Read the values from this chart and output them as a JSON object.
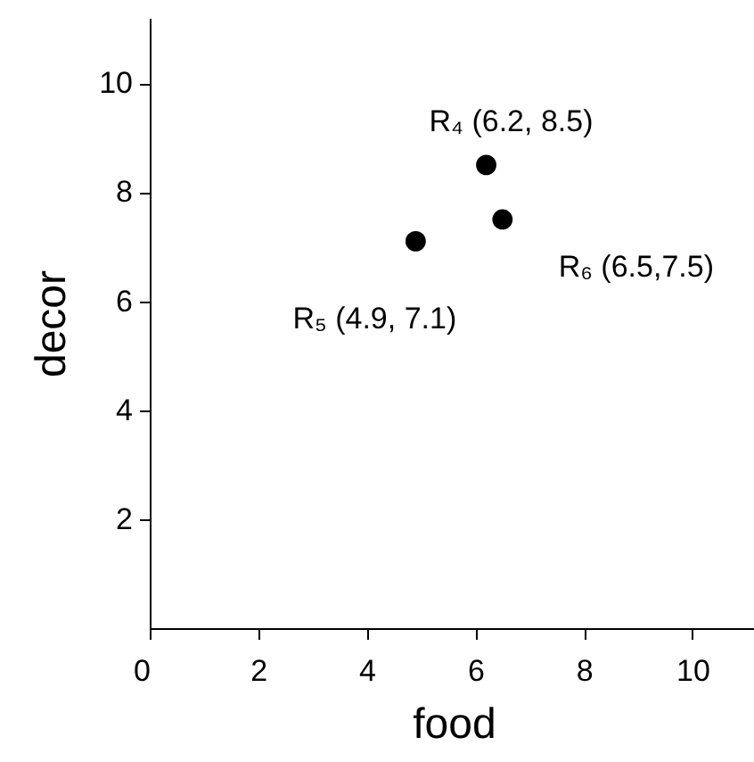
{
  "chart_data": {
    "type": "scatter",
    "xlabel": "food",
    "ylabel": "decor",
    "x": [
      6.2,
      4.9,
      6.5
    ],
    "values": [
      8.5,
      7.1,
      7.5
    ],
    "color": "#000000",
    "marker": "circle",
    "xlim": [
      0,
      11.2
    ],
    "ylim": [
      0,
      11.2
    ],
    "xticks": [
      0,
      2,
      4,
      6,
      8,
      10
    ],
    "yticks": [
      2,
      4,
      6,
      8,
      10
    ],
    "grid": false,
    "annotations": [
      {
        "text": "R₄ (6.2, 8.5)",
        "x": 6.2,
        "y": 8.5
      },
      {
        "text": "R₅ (4.9, 7.1)",
        "x": 4.9,
        "y": 7.1
      },
      {
        "text": "R₆ (6.5,7.5)",
        "x": 6.5,
        "y": 7.5
      }
    ]
  }
}
